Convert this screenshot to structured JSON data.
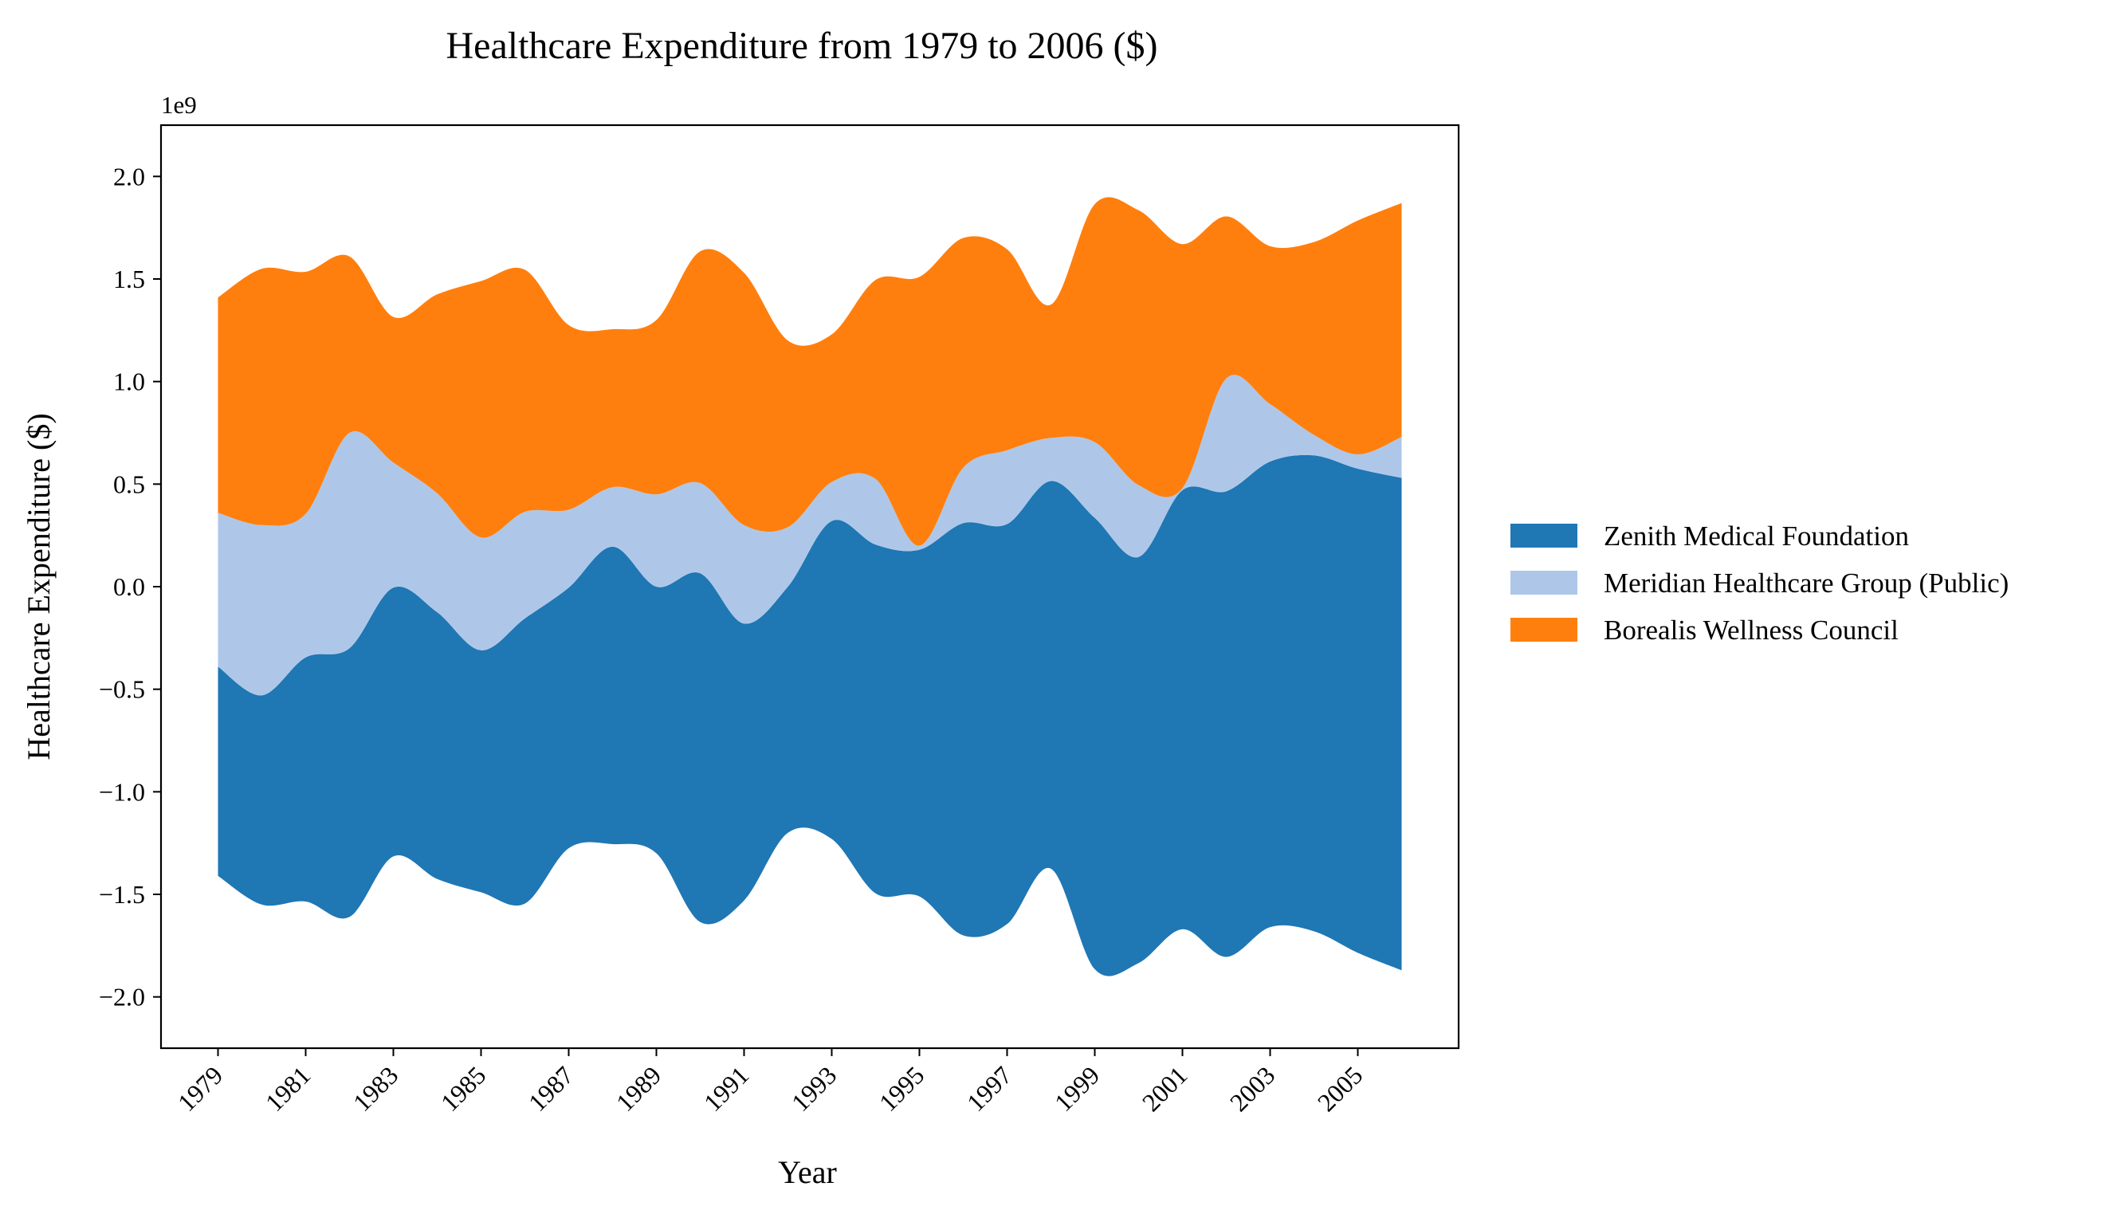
{
  "chart_data": {
    "type": "area",
    "subtype": "streamgraph (symmetric baseline, smoothed)",
    "title": "Healthcare Expenditure from 1979 to 2006 ($)",
    "xlabel": "Year",
    "ylabel": "Healthcare Expenditure ($)",
    "y_offset_label": "1e9",
    "y_scale": 1000000000,
    "ylim": [
      -2.25,
      2.25
    ],
    "y_ticks": [
      -2.0,
      -1.5,
      -1.0,
      -0.5,
      0.0,
      0.5,
      1.0,
      1.5,
      2.0
    ],
    "y_tick_labels": [
      "−2.0",
      "−1.5",
      "−1.0",
      "−0.5",
      "0.0",
      "0.5",
      "1.0",
      "1.5",
      "2.0"
    ],
    "xlim": [
      1977.7,
      2007.3
    ],
    "x_ticks": [
      1979,
      1981,
      1983,
      1985,
      1987,
      1989,
      1991,
      1993,
      1995,
      1997,
      1999,
      2001,
      2003,
      2005
    ],
    "x_tick_labels": [
      "1979",
      "1981",
      "1983",
      "1985",
      "1987",
      "1989",
      "1991",
      "1993",
      "1995",
      "1997",
      "1999",
      "2001",
      "2003",
      "2005"
    ],
    "x": [
      1979,
      1980,
      1981,
      1982,
      1983,
      1984,
      1985,
      1986,
      1987,
      1988,
      1989,
      1990,
      1991,
      1992,
      1993,
      1994,
      1995,
      1996,
      1997,
      1998,
      1999,
      2000,
      2001,
      2002,
      2003,
      2004,
      2005,
      2006
    ],
    "series": [
      {
        "name": "Zenith Medical Foundation",
        "color": "#1f77b4",
        "values": [
          1.02,
          1.02,
          1.19,
          1.31,
          1.31,
          1.3,
          1.18,
          1.39,
          1.27,
          1.45,
          1.3,
          1.7,
          1.35,
          1.2,
          1.55,
          1.7,
          1.69,
          2.01,
          1.95,
          1.89,
          2.2,
          1.98,
          2.14,
          2.27,
          2.27,
          2.32,
          2.36,
          2.4
        ]
      },
      {
        "name": "Meridian Healthcare Group (Public)",
        "color": "#aec7e8",
        "values": [
          0.75,
          0.83,
          0.7,
          1.05,
          0.61,
          0.58,
          0.55,
          0.52,
          0.38,
          0.29,
          0.45,
          0.44,
          0.48,
          0.29,
          0.19,
          0.32,
          0.02,
          0.27,
          0.36,
          0.21,
          0.37,
          0.35,
          0.01,
          0.55,
          0.28,
          0.1,
          0.07,
          0.2
        ]
      },
      {
        "name": "Borealis Wellness Council",
        "color": "#ff7f0e",
        "values": [
          1.05,
          1.25,
          1.18,
          0.86,
          0.71,
          0.97,
          1.25,
          1.18,
          0.9,
          0.77,
          0.85,
          1.13,
          1.23,
          0.91,
          0.72,
          0.97,
          1.31,
          1.12,
          0.98,
          0.65,
          1.16,
          1.34,
          1.19,
          0.79,
          0.77,
          0.94,
          1.14,
          1.14
        ]
      }
    ],
    "legend_position": "right",
    "grid": false
  }
}
